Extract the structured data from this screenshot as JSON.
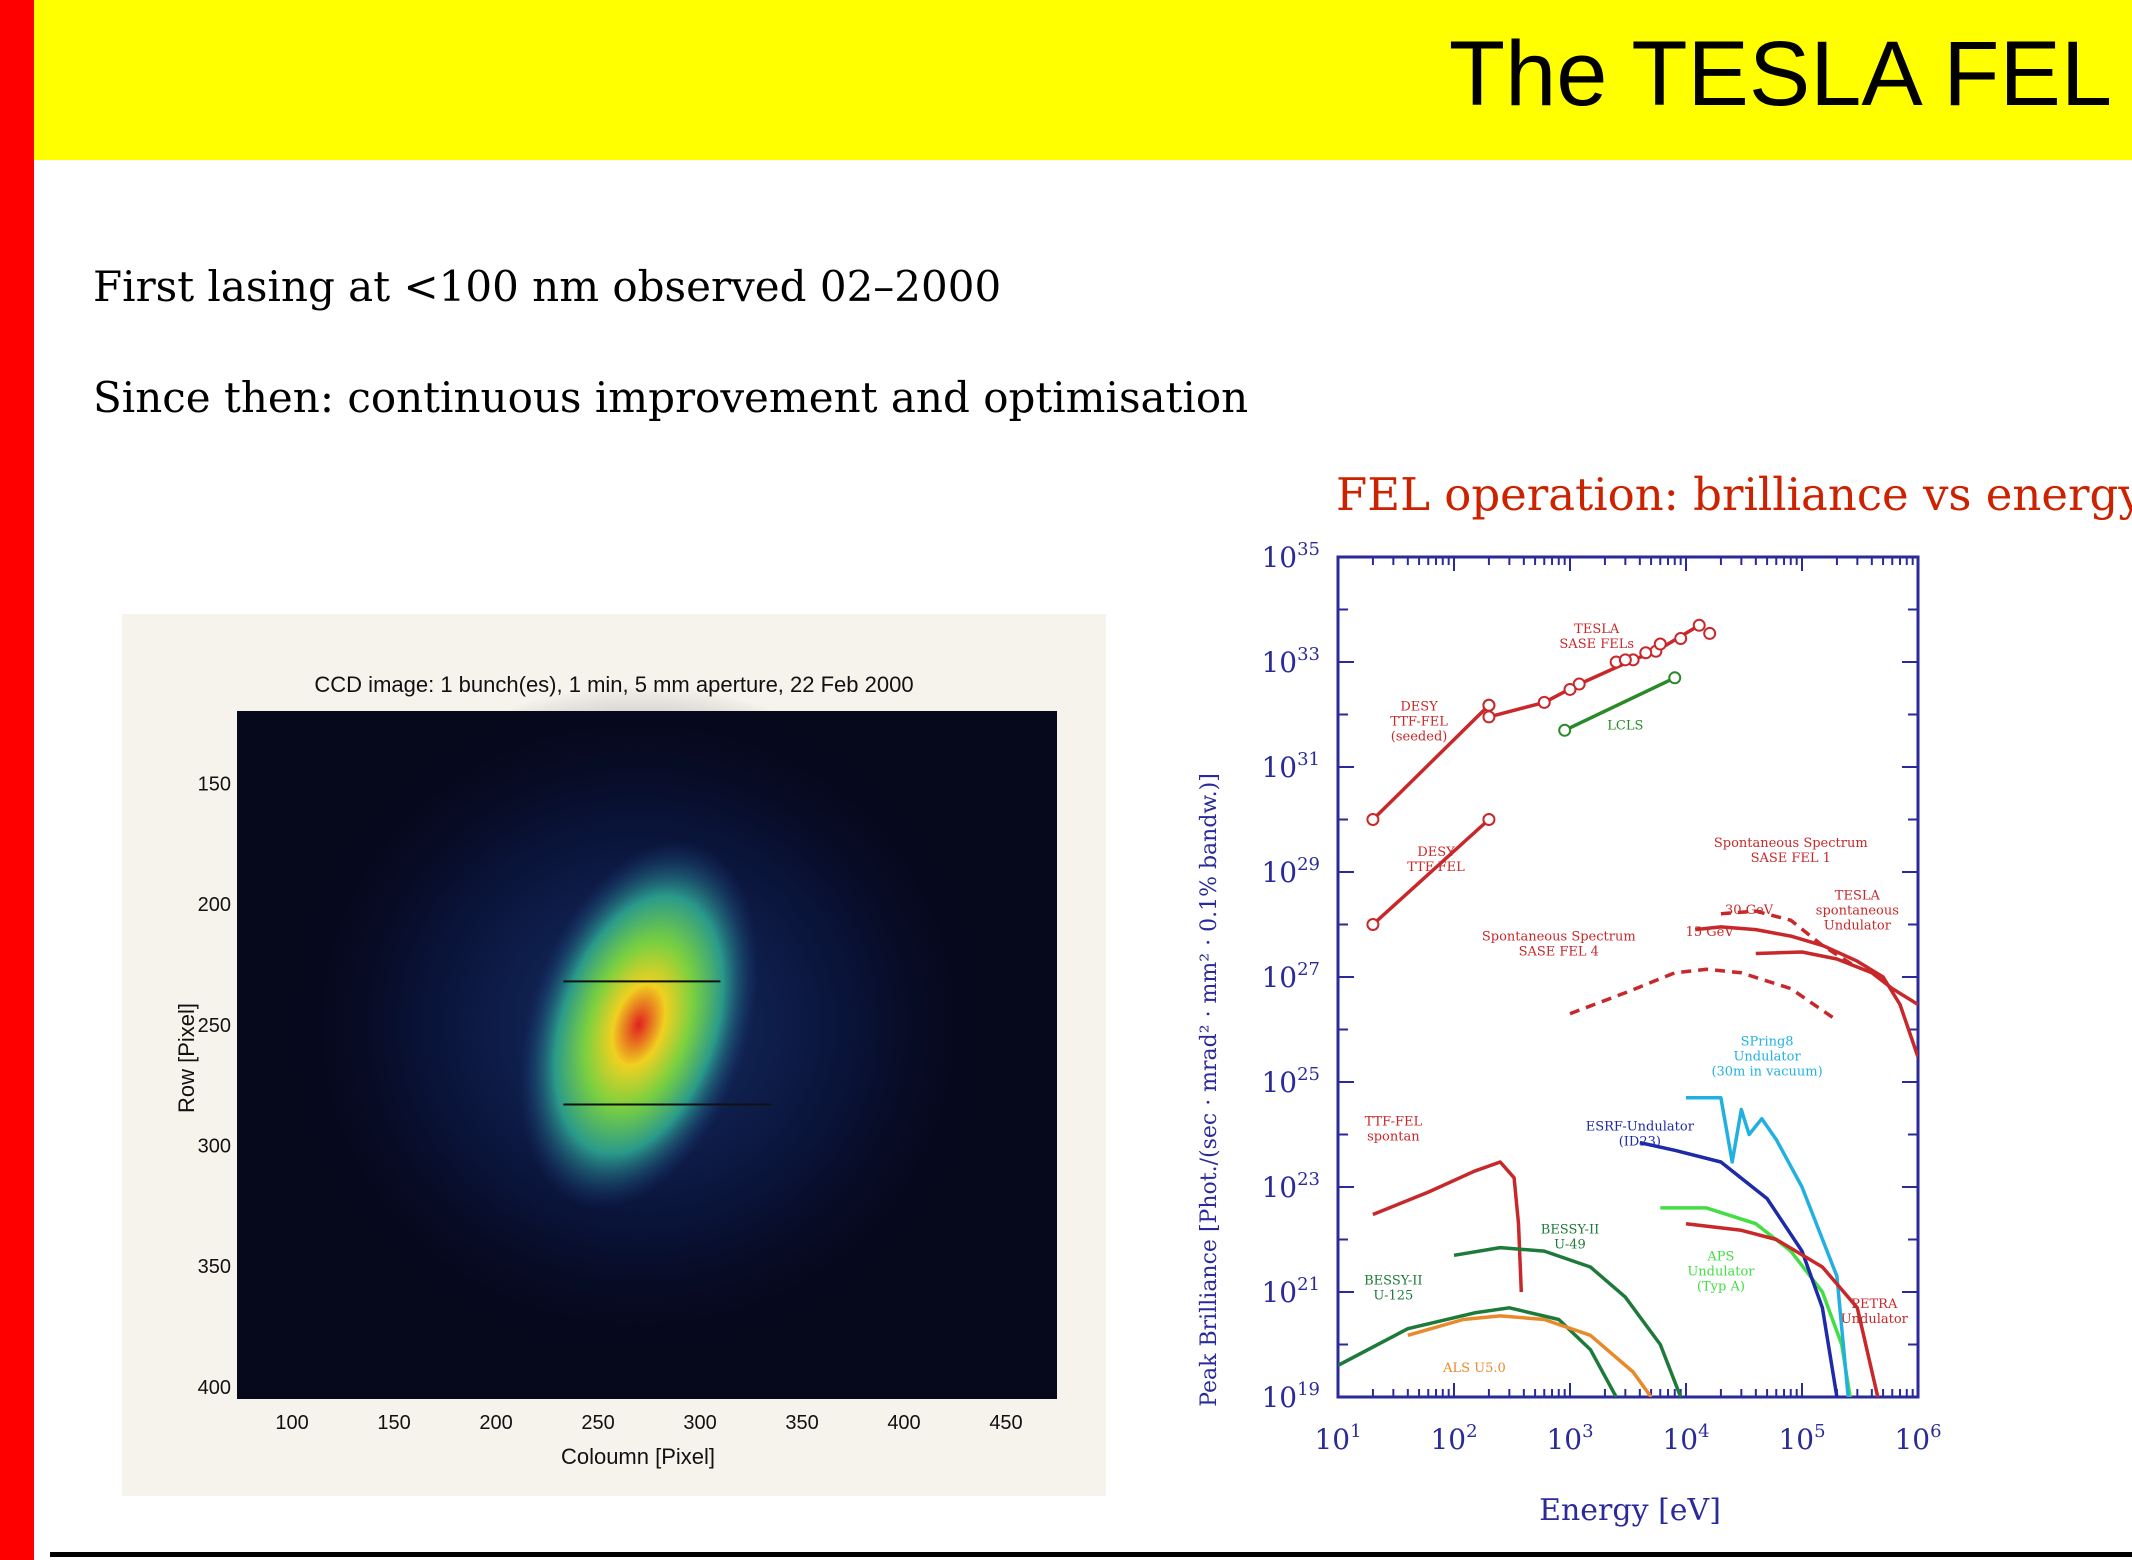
{
  "slide": {
    "title": "The TESLA FEL",
    "bullets": [
      "First lasing at <100 nm observed 02–2000",
      "Since then: continuous improvement and optimisation"
    ],
    "chart_caption": "FEL operation: brilliance vs energy"
  },
  "colors": {
    "header": "#ffff00",
    "left_bar": "#ff0000",
    "caption": "#cc2200",
    "axis": "#2a2a9a",
    "tesla": "#c8282a",
    "lcls": "#2a8a2a"
  },
  "chart_data": [
    {
      "type": "heatmap",
      "title": "CCD image: 1 bunch(es), 1 min, 5 mm aperture, 22 Feb 2000",
      "xlabel": "Coloumn [Pixel]",
      "ylabel": "Row [Pixel]",
      "xticks": [
        100,
        150,
        200,
        250,
        300,
        350,
        400,
        450
      ],
      "yticks": [
        150,
        200,
        250,
        300,
        350,
        400
      ],
      "xlim": [
        73,
        475
      ],
      "ylim": [
        120,
        405
      ],
      "spot_center": [
        270,
        250
      ]
    },
    {
      "type": "line",
      "xlabel": "Energy [eV]",
      "ylabel": "Peak Brilliance [Phot./(sec · mrad² · mm² · 0.1% bandw.)]",
      "xscale": "log",
      "yscale": "log",
      "xlim": [
        10,
        1000000
      ],
      "ylim": [
        1e+19,
        1e+35
      ],
      "xticks": [
        {
          "base": "10",
          "exp": "1"
        },
        {
          "base": "10",
          "exp": "2"
        },
        {
          "base": "10",
          "exp": "3"
        },
        {
          "base": "10",
          "exp": "4"
        },
        {
          "base": "10",
          "exp": "5"
        },
        {
          "base": "10",
          "exp": "6"
        }
      ],
      "yticks": [
        {
          "base": "10",
          "exp": "19"
        },
        {
          "base": "10",
          "exp": "21"
        },
        {
          "base": "10",
          "exp": "23"
        },
        {
          "base": "10",
          "exp": "25"
        },
        {
          "base": "10",
          "exp": "27"
        },
        {
          "base": "10",
          "exp": "29"
        },
        {
          "base": "10",
          "exp": "31"
        },
        {
          "base": "10",
          "exp": "33"
        },
        {
          "base": "10",
          "exp": "35"
        }
      ],
      "series": [
        {
          "name": "DESY TTF-FEL (seeded)",
          "color": "#c8282a",
          "label_lines": [
            "DESY",
            "TTF-FEL",
            "(seeded)"
          ],
          "label_at": [
            50,
            1.2e+32
          ],
          "markers": true,
          "points": [
            [
              20,
              1e+30
            ],
            [
              200,
              1.5e+32
            ]
          ]
        },
        {
          "name": "DESY TTF-FEL",
          "color": "#c8282a",
          "label_lines": [
            "DESY",
            "TTF-FEL"
          ],
          "label_at": [
            70,
            2e+29
          ],
          "markers": true,
          "points": [
            [
              20,
              1e+28
            ],
            [
              200,
              1e+30
            ]
          ]
        },
        {
          "name": "TESLA SASE FELs",
          "color": "#c8282a",
          "label_lines": [
            "TESLA",
            "SASE FELs"
          ],
          "label_at": [
            1700,
            3.6e+33
          ],
          "markers": true,
          "points": [
            [
              200,
              9e+31
            ],
            [
              600,
              1.7e+32
            ],
            [
              1200,
              3.8e+32
            ],
            [
              3500,
              1.1e+33
            ],
            [
              5500,
              1.6e+33
            ],
            [
              13000,
              5e+33
            ]
          ],
          "extra_markers": [
            [
              200,
              1.5e+32
            ],
            [
              1000,
              3e+32
            ],
            [
              2500,
              1e+33
            ],
            [
              3000,
              1.1e+33
            ],
            [
              4500,
              1.5e+33
            ],
            [
              6000,
              2.2e+33
            ],
            [
              9000,
              2.8e+33
            ],
            [
              16000,
              3.5e+33
            ]
          ]
        },
        {
          "name": "LCLS",
          "color": "#2a8a2a",
          "label_lines": [
            "LCLS"
          ],
          "label_at": [
            3000,
            5.2e+31
          ],
          "markers": true,
          "points": [
            [
              900,
              5e+31
            ],
            [
              8000,
              5e+32
            ]
          ]
        },
        {
          "name": "Spontaneous Spectrum SASE FEL 1",
          "color": "#c8282a",
          "dashed": true,
          "label_lines": [
            "Spontaneous Spectrum",
            "SASE FEL 1"
          ],
          "label_at": [
            80000,
            3e+29
          ],
          "points": [
            [
              20000,
              1.6e+28
            ],
            [
              40000,
              1.8e+28
            ],
            [
              80000,
              1.2e+28
            ],
            [
              150000,
              4e+27
            ],
            [
              300000,
              1.5e+27
            ]
          ]
        },
        {
          "name": "Spontaneous Spectrum SASE FEL 4",
          "color": "#c8282a",
          "dashed": true,
          "label_lines": [
            "Spontaneous Spectrum",
            "SASE FEL 4"
          ],
          "label_at": [
            800,
            5e+27
          ],
          "points": [
            [
              1000,
              2e+26
            ],
            [
              3000,
              5e+26
            ],
            [
              8000,
              1.2e+27
            ],
            [
              15000,
              1.4e+27
            ],
            [
              30000,
              1.2e+27
            ],
            [
              80000,
              6e+26
            ],
            [
              200000,
              1.5e+26
            ]
          ]
        },
        {
          "name": "30 GeV",
          "color": "#c8282a",
          "label_lines": [
            "30 GeV"
          ],
          "label_at": [
            35000,
            1.6e+28
          ],
          "points": [
            [
              40000,
              2.8e+27
            ],
            [
              100000,
              3e+27
            ],
            [
              200000,
              2.2e+27
            ],
            [
              400000,
              1.2e+27
            ],
            [
              600000,
              6e+26
            ],
            [
              1000000,
              3e+26
            ]
          ]
        },
        {
          "name": "15 GeV",
          "color": "#c8282a",
          "label_lines": [
            "15 GeV"
          ],
          "label_at": [
            16000,
            6e+27
          ],
          "points": [
            [
              12000,
              8e+27
            ],
            [
              20000,
              9e+27
            ],
            [
              40000,
              8e+27
            ],
            [
              80000,
              6e+27
            ],
            [
              150000,
              4e+27
            ],
            [
              300000,
              2e+27
            ],
            [
              500000,
              1e+27
            ],
            [
              700000,
              3e+26
            ],
            [
              1000000,
              3e+25
            ]
          ]
        },
        {
          "name": "TESLA spontaneous Undulator",
          "color": "#c8282a",
          "label_lines": [
            "TESLA",
            "spontaneous",
            "Undulator"
          ],
          "label_at": [
            300000,
            3e+28
          ],
          "no_line": true,
          "points": []
        },
        {
          "name": "TTF-FEL spontan",
          "color": "#c8282a",
          "label_lines": [
            "TTF-FEL",
            "spontan"
          ],
          "label_at": [
            30,
            1.5e+24
          ],
          "points": [
            [
              20,
              3e+22
            ],
            [
              60,
              8e+22
            ],
            [
              150,
              2e+23
            ],
            [
              250,
              3e+23
            ],
            [
              330,
              1.5e+23
            ],
            [
              360,
              2e+22
            ],
            [
              380,
              1e+21
            ]
          ]
        },
        {
          "name": "BESSY-II U-49",
          "color": "#1e7a3a",
          "label_lines": [
            "BESSY-II",
            "U-49"
          ],
          "label_at": [
            1000,
            1.3e+22
          ],
          "points": [
            [
              100,
              5e+21
            ],
            [
              250,
              7e+21
            ],
            [
              600,
              6e+21
            ],
            [
              1500,
              3e+21
            ],
            [
              3000,
              8e+20
            ],
            [
              6000,
              1e+20
            ],
            [
              9000,
              1e+19
            ]
          ]
        },
        {
          "name": "BESSY-II U-125",
          "color": "#1e7a3a",
          "label_lines": [
            "BESSY-II",
            "U-125"
          ],
          "label_at": [
            30,
            1.4e+21
          ],
          "points": [
            [
              10,
              4e+19
            ],
            [
              40,
              2e+20
            ],
            [
              150,
              4e+20
            ],
            [
              300,
              5e+20
            ],
            [
              800,
              3e+20
            ],
            [
              1500,
              8e+19
            ],
            [
              2500,
              1e+19
            ]
          ]
        },
        {
          "name": "ALS U5.0",
          "color": "#e88a2a",
          "label_lines": [
            "ALS U5.0"
          ],
          "label_at": [
            150,
            3e+19
          ],
          "points": [
            [
              40,
              1.5e+20
            ],
            [
              120,
              3e+20
            ],
            [
              250,
              3.5e+20
            ],
            [
              600,
              3e+20
            ],
            [
              1500,
              1.5e+20
            ],
            [
              3500,
              3e+19
            ],
            [
              5000,
              1e+19
            ]
          ]
        },
        {
          "name": "APS Undulator (Typ A)",
          "color": "#44dd44",
          "label_lines": [
            "APS",
            "Undulator",
            "(Typ A)"
          ],
          "label_at": [
            20000,
            4e+21
          ],
          "points": [
            [
              6000,
              4e+22
            ],
            [
              15000,
              4e+22
            ],
            [
              40000,
              2e+22
            ],
            [
              80000,
              6e+21
            ],
            [
              150000,
              1e+21
            ],
            [
              220000,
              1e+20
            ],
            [
              260000,
              1e+19
            ]
          ]
        },
        {
          "name": "ESRF-Undulator (ID23)",
          "color": "#1e2aa8",
          "label_lines": [
            "ESRF-Undulator",
            "(ID23)"
          ],
          "label_at": [
            4000,
            1.2e+24
          ],
          "points": [
            [
              4000,
              7e+23
            ],
            [
              8000,
              5e+23
            ],
            [
              20000,
              3e+23
            ],
            [
              50000,
              6e+22
            ],
            [
              100000,
              6e+21
            ],
            [
              150000,
              5e+20
            ],
            [
              200000,
              1e+19
            ]
          ]
        },
        {
          "name": "SPring8 Undulator (30m in vacuum)",
          "color": "#22b0e0",
          "label_lines": [
            "SPring8",
            "Undulator",
            "(30m in vacuum)"
          ],
          "label_at": [
            50000,
            5e+25
          ],
          "points": [
            [
              10000,
              5e+24
            ],
            [
              20000,
              5e+24
            ],
            [
              25000,
              3e+23
            ],
            [
              30000,
              3e+24
            ],
            [
              35000,
              1e+24
            ],
            [
              45000,
              2e+24
            ],
            [
              60000,
              8e+23
            ],
            [
              100000,
              1e+23
            ],
            [
              200000,
              2e+21
            ],
            [
              250000,
              1e+19
            ]
          ]
        },
        {
          "name": "PETRA Undulator",
          "color": "#c8282a",
          "label_lines": [
            "PETRA",
            "Undulator"
          ],
          "label_at": [
            420000,
            5e+20
          ],
          "points": [
            [
              10000,
              2e+22
            ],
            [
              30000,
              1.5e+22
            ],
            [
              60000,
              1e+22
            ],
            [
              150000,
              3e+21
            ],
            [
              300000,
              5e+20
            ],
            [
              450000,
              1e+19
            ]
          ]
        }
      ]
    }
  ]
}
